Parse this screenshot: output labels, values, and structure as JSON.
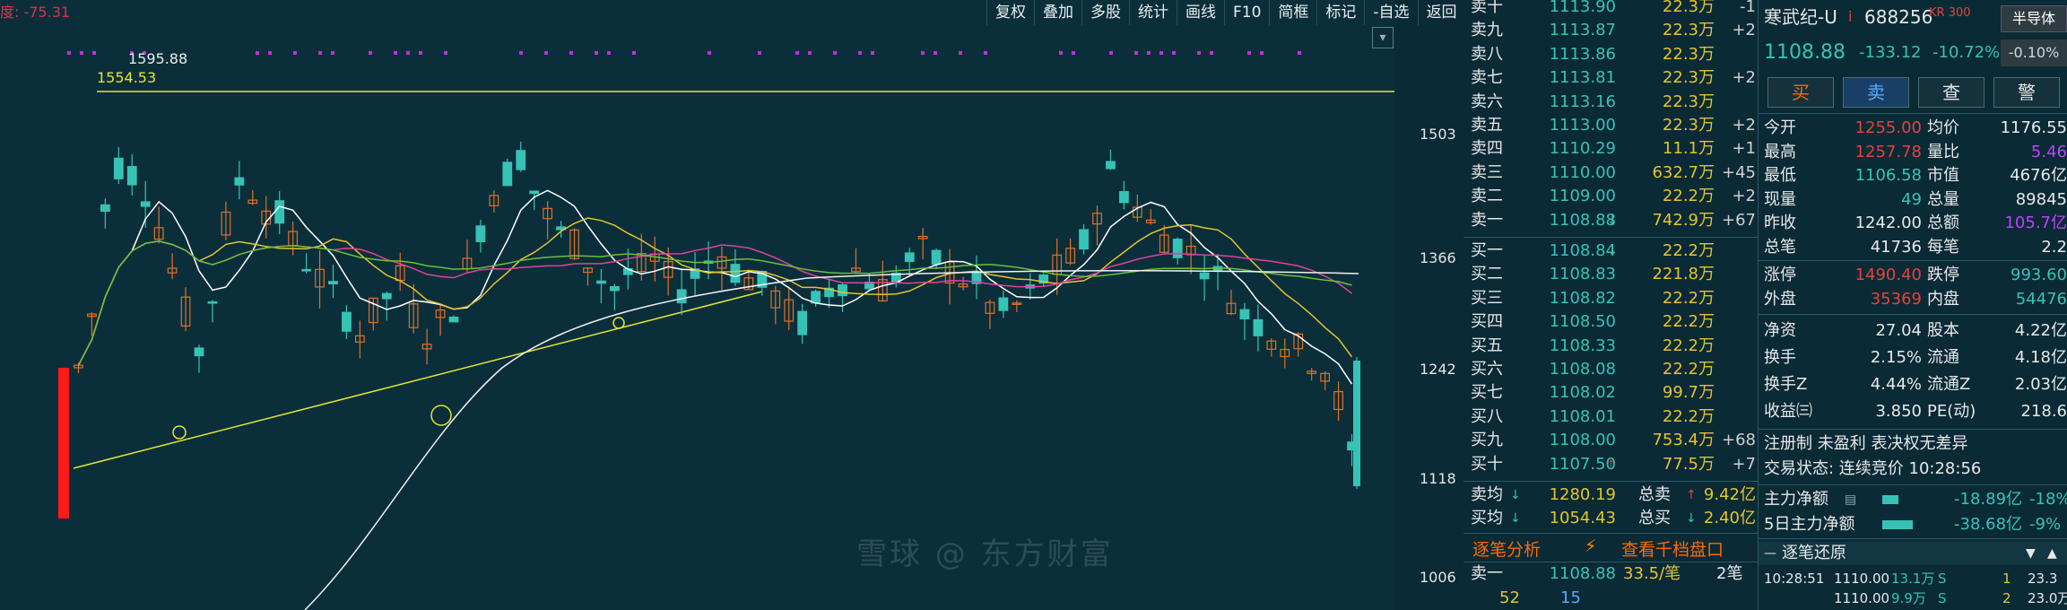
{
  "toolbar": {
    "items": [
      "复权",
      "叠加",
      "多股",
      "统计",
      "画线",
      "F10",
      "简框",
      "标记",
      "-自选",
      "返回"
    ]
  },
  "chart": {
    "indicator_label": "度: -75.31",
    "high_annotation": "1595.88",
    "line_annotation": "1554.53",
    "y_axis": [
      "1503",
      "1366",
      "1242",
      "1118",
      "1006"
    ]
  },
  "watermark": "雪球 @ 东方财富",
  "orderbook": {
    "sell": [
      {
        "label": "卖十",
        "price": "1113.90",
        "vol": "22.3万",
        "chg": "-1"
      },
      {
        "label": "卖九",
        "price": "1113.87",
        "vol": "22.3万",
        "chg": "+2"
      },
      {
        "label": "卖八",
        "price": "1113.86",
        "vol": "22.3万",
        "chg": ""
      },
      {
        "label": "卖七",
        "price": "1113.81",
        "vol": "22.3万",
        "chg": "+2"
      },
      {
        "label": "卖六",
        "price": "1113.16",
        "vol": "22.3万",
        "chg": ""
      },
      {
        "label": "卖五",
        "price": "1113.00",
        "vol": "22.3万",
        "chg": "+2"
      },
      {
        "label": "卖四",
        "price": "1110.29",
        "vol": "11.1万",
        "chg": "+1"
      },
      {
        "label": "卖三",
        "price": "1110.00",
        "vol": "632.7万",
        "chg": "+45"
      },
      {
        "label": "卖二",
        "price": "1109.00",
        "vol": "22.2万",
        "chg": "+2"
      },
      {
        "label": "卖一",
        "price": "1108.88",
        "vol": "742.9万",
        "chg": "+67"
      }
    ],
    "buy": [
      {
        "label": "买一",
        "price": "1108.84",
        "vol": "22.2万",
        "chg": ""
      },
      {
        "label": "买二",
        "price": "1108.83",
        "vol": "221.8万",
        "chg": ""
      },
      {
        "label": "买三",
        "price": "1108.82",
        "vol": "22.2万",
        "chg": ""
      },
      {
        "label": "买四",
        "price": "1108.50",
        "vol": "22.2万",
        "chg": ""
      },
      {
        "label": "买五",
        "price": "1108.33",
        "vol": "22.2万",
        "chg": ""
      },
      {
        "label": "买六",
        "price": "1108.08",
        "vol": "22.2万",
        "chg": ""
      },
      {
        "label": "买七",
        "price": "1108.02",
        "vol": "99.7万",
        "chg": ""
      },
      {
        "label": "买八",
        "price": "1108.01",
        "vol": "22.2万",
        "chg": ""
      },
      {
        "label": "买九",
        "price": "1108.00",
        "vol": "753.4万",
        "chg": "+68"
      },
      {
        "label": "买十",
        "price": "1107.50",
        "vol": "77.5万",
        "chg": "+7"
      }
    ],
    "avg_sell": {
      "label": "卖均",
      "price": "1280.19",
      "total_label": "总卖",
      "total": "9.42亿"
    },
    "avg_buy": {
      "label": "买均",
      "price": "1054.43",
      "total_label": "总买",
      "total": "2.40亿"
    },
    "tab_analysis": "逐笔分析",
    "tab_depth": "查看千档盘口",
    "sell1": {
      "label": "卖一",
      "price": "1108.88",
      "per": "33.5/笔",
      "count": "2笔"
    },
    "bottom": {
      "a": "52",
      "b": "15"
    }
  },
  "quote": {
    "name": "寒武纪-U",
    "tag": "i",
    "code": "688256",
    "kr": "KR 300",
    "sector": "半导体",
    "sector_chg": "-0.10%",
    "price": "1108.88",
    "change": "-133.12",
    "pct": "-10.72%",
    "buttons": [
      "买",
      "卖",
      "查",
      "警"
    ],
    "stats": [
      {
        "l1": "今开",
        "v1": "1255.00",
        "l2": "均价",
        "v2": "1176.55"
      },
      {
        "l1": "最高",
        "v1": "1257.78",
        "l2": "量比",
        "v2": "5.46"
      },
      {
        "l1": "最低",
        "v1": "1106.58",
        "l2": "市值",
        "v2": "4676亿"
      },
      {
        "l1": "现量",
        "v1": "49",
        "l2": "总量",
        "v2": "89845"
      },
      {
        "l1": "昨收",
        "v1": "1242.00",
        "l2": "总额",
        "v2": "105.7亿"
      },
      {
        "l1": "总笔",
        "v1": "41736",
        "l2": "每笔",
        "v2": "2.2"
      }
    ],
    "limit": [
      {
        "l1": "涨停",
        "v1": "1490.40",
        "l2": "跌停",
        "v2": "993.60"
      },
      {
        "l1": "外盘",
        "v1": "35369",
        "l2": "内盘",
        "v2": "54476"
      }
    ],
    "fund": [
      {
        "l1": "净资",
        "v1": "27.04",
        "l2": "股本",
        "v2": "4.22亿"
      },
      {
        "l1": "换手",
        "v1": "2.15%",
        "l2": "流通",
        "v2": "4.18亿"
      },
      {
        "l1": "换手Z",
        "v1": "4.44%",
        "l2": "流通Z",
        "v2": "2.03亿"
      },
      {
        "l1": "收益㈢",
        "v1": "3.850",
        "l2": "PE(动)",
        "v2": "218.6"
      }
    ],
    "reg": "注册制 未盈利 表决权无差异",
    "trade_state": "交易状态: 连续竞价 10:28:56",
    "main_net_label": "主力净额",
    "main_net": "-18.89亿",
    "main_net_pct": "-18%",
    "main5_label": "5日主力净额",
    "main5": "-38.68亿",
    "main5_pct": "-9%",
    "tick_title": "逐笔还原",
    "ticks": [
      {
        "time": "10:28:51",
        "price": "1110.00",
        "vol": "13.1万",
        "side": "S",
        "n": "1",
        "x": "23.3"
      },
      {
        "time": "",
        "price": "1110.00",
        "vol": "9.9万",
        "side": "S",
        "n": "2",
        "x": "23.0万"
      }
    ]
  }
}
